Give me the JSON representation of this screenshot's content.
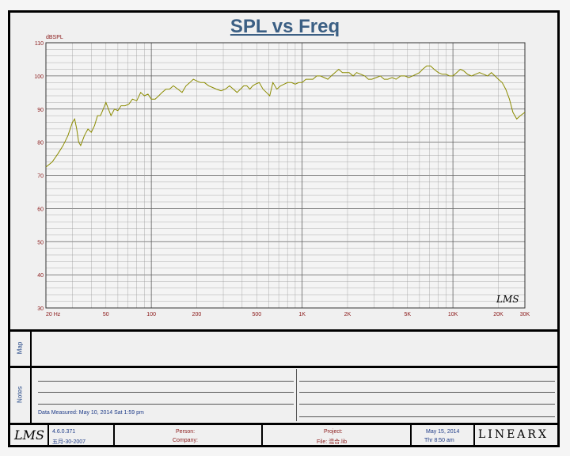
{
  "chart_data": {
    "type": "line",
    "title": "SPL vs Freq",
    "ylabel": "dBSPL",
    "xscale": "log",
    "xlim": [
      20,
      30000
    ],
    "ylim": [
      30,
      110
    ],
    "yticks": [
      110,
      100,
      90,
      80,
      70,
      60,
      50,
      40,
      30
    ],
    "xtick_labels": [
      {
        "value": 20,
        "label": "20 Hz"
      },
      {
        "value": 50,
        "label": "50"
      },
      {
        "value": 100,
        "label": "100"
      },
      {
        "value": 200,
        "label": "200"
      },
      {
        "value": 500,
        "label": "500"
      },
      {
        "value": 1000,
        "label": "1K"
      },
      {
        "value": 2000,
        "label": "2K"
      },
      {
        "value": 5000,
        "label": "5K"
      },
      {
        "value": 10000,
        "label": "10K"
      },
      {
        "value": 20000,
        "label": "20K"
      },
      {
        "value": 30000,
        "label": "30K"
      }
    ],
    "grid": true,
    "series": [
      {
        "color": "#8b8b00",
        "points": [
          [
            20,
            72.5
          ],
          [
            22,
            74
          ],
          [
            24,
            76.5
          ],
          [
            26,
            79
          ],
          [
            28,
            82
          ],
          [
            30,
            86
          ],
          [
            31,
            87
          ],
          [
            32,
            84
          ],
          [
            33,
            80
          ],
          [
            34,
            79
          ],
          [
            36,
            82
          ],
          [
            38,
            84
          ],
          [
            40,
            83
          ],
          [
            42,
            85
          ],
          [
            44,
            88
          ],
          [
            46,
            88
          ],
          [
            48,
            90
          ],
          [
            50,
            92
          ],
          [
            52,
            90
          ],
          [
            54,
            88
          ],
          [
            57,
            90
          ],
          [
            60,
            89.5
          ],
          [
            63,
            91
          ],
          [
            67,
            91
          ],
          [
            71,
            91.5
          ],
          [
            75,
            93
          ],
          [
            80,
            92.5
          ],
          [
            85,
            95
          ],
          [
            90,
            94
          ],
          [
            95,
            94.5
          ],
          [
            100,
            93
          ],
          [
            106,
            93
          ],
          [
            112,
            94
          ],
          [
            118,
            95
          ],
          [
            125,
            96
          ],
          [
            132,
            96
          ],
          [
            140,
            97
          ],
          [
            150,
            96
          ],
          [
            160,
            95
          ],
          [
            170,
            97
          ],
          [
            180,
            98
          ],
          [
            190,
            99
          ],
          [
            200,
            98.5
          ],
          [
            212,
            98
          ],
          [
            225,
            98
          ],
          [
            240,
            97
          ],
          [
            255,
            96.5
          ],
          [
            270,
            96
          ],
          [
            290,
            95.5
          ],
          [
            310,
            96
          ],
          [
            330,
            97
          ],
          [
            350,
            96
          ],
          [
            370,
            95
          ],
          [
            390,
            96
          ],
          [
            410,
            97
          ],
          [
            430,
            97
          ],
          [
            450,
            96
          ],
          [
            470,
            97
          ],
          [
            490,
            97.5
          ],
          [
            520,
            98
          ],
          [
            550,
            96
          ],
          [
            580,
            95
          ],
          [
            610,
            94
          ],
          [
            640,
            98
          ],
          [
            680,
            96
          ],
          [
            720,
            97
          ],
          [
            760,
            97.5
          ],
          [
            800,
            98
          ],
          [
            850,
            98
          ],
          [
            900,
            97.5
          ],
          [
            950,
            98
          ],
          [
            1000,
            98
          ],
          [
            1060,
            99
          ],
          [
            1120,
            99
          ],
          [
            1180,
            99
          ],
          [
            1250,
            100
          ],
          [
            1320,
            100
          ],
          [
            1400,
            99.5
          ],
          [
            1480,
            99
          ],
          [
            1560,
            100
          ],
          [
            1650,
            101
          ],
          [
            1750,
            102
          ],
          [
            1850,
            101
          ],
          [
            1950,
            101
          ],
          [
            2050,
            101
          ],
          [
            2180,
            100
          ],
          [
            2300,
            101
          ],
          [
            2450,
            100.5
          ],
          [
            2600,
            100
          ],
          [
            2750,
            99
          ],
          [
            2900,
            99
          ],
          [
            3100,
            99.5
          ],
          [
            3300,
            100
          ],
          [
            3500,
            99
          ],
          [
            3700,
            99
          ],
          [
            3950,
            99.5
          ],
          [
            4200,
            99
          ],
          [
            4500,
            100
          ],
          [
            4800,
            100
          ],
          [
            5100,
            99.5
          ],
          [
            5400,
            100
          ],
          [
            5700,
            100.5
          ],
          [
            6000,
            101
          ],
          [
            6300,
            102
          ],
          [
            6700,
            103
          ],
          [
            7100,
            103
          ],
          [
            7500,
            102
          ],
          [
            8000,
            101
          ],
          [
            8500,
            100.5
          ],
          [
            9000,
            100.5
          ],
          [
            9500,
            100
          ],
          [
            10000,
            100
          ],
          [
            10600,
            101
          ],
          [
            11200,
            102
          ],
          [
            11800,
            101.5
          ],
          [
            12500,
            100.5
          ],
          [
            13300,
            100
          ],
          [
            14100,
            100.5
          ],
          [
            15000,
            101
          ],
          [
            16000,
            100.5
          ],
          [
            17000,
            100
          ],
          [
            18000,
            101
          ],
          [
            19000,
            100
          ],
          [
            20000,
            99
          ],
          [
            21200,
            98
          ],
          [
            22400,
            96
          ],
          [
            23700,
            93
          ],
          [
            25000,
            89
          ],
          [
            26500,
            87
          ],
          [
            28000,
            88
          ],
          [
            30000,
            89
          ]
        ]
      }
    ]
  },
  "watermark": "LMS",
  "sections": {
    "map_label": "Map",
    "notes_label": "Notes",
    "data_measured": "Data Measured: May 10, 2014  Sat  1:59 pm"
  },
  "footer": {
    "logo": "LMS",
    "version": "4.6.0.371",
    "build_date": "五月-30-2007",
    "person_label": "Person:",
    "company_label": "Company:",
    "project_label": "Project:",
    "file_label": "File: 混合.lib",
    "date": "May 15, 2014",
    "time": "Thr  8:50 am",
    "brand": "LINEARX"
  },
  "colors": {
    "axis_label": "#8b1a1a",
    "title": "#3b5f84",
    "curve": "#8b8b00",
    "grid": "#9a9a9a"
  }
}
